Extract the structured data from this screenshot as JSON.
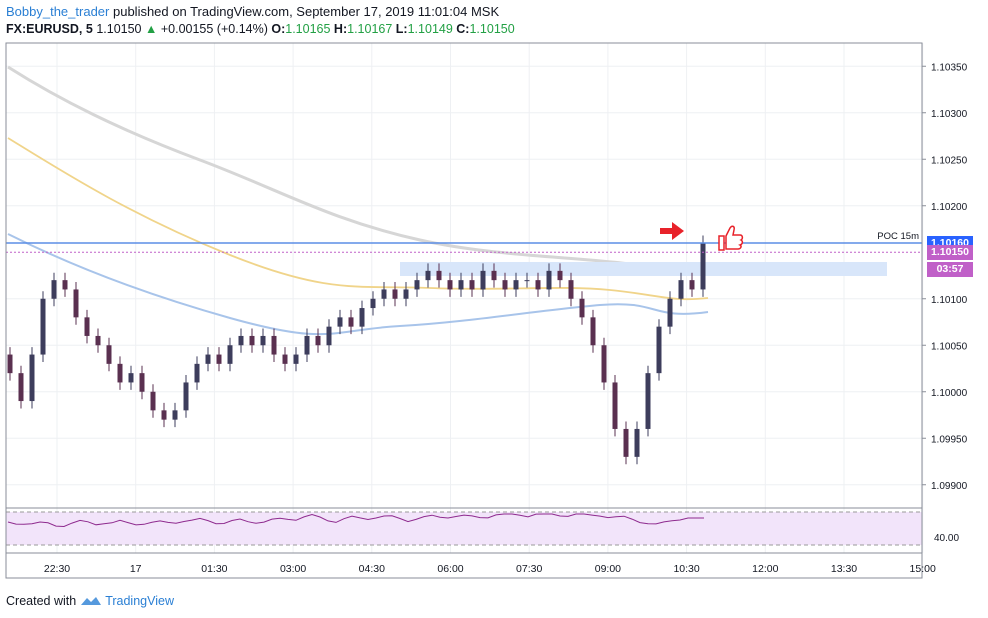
{
  "header": {
    "author": "Bobby_the_trader",
    "published": "published on TradingView.com, September 17, 2019 11:01:04 MSK",
    "symbol": "FX:EURUSD, 5",
    "last": "1.10150",
    "change_arrow": "▲",
    "change": "+0.00155 (+0.14%)",
    "o_label": "O:",
    "o": "1.10165",
    "h_label": "H:",
    "h": "1.10167",
    "l_label": "L:",
    "l": "1.10149",
    "c_label": "C:",
    "c": "1.10150"
  },
  "price_axis": {
    "ticks": [
      "1.10350",
      "1.10300",
      "1.10250",
      "1.10200",
      "1.10100",
      "1.10050",
      "1.10000",
      "1.09950",
      "1.09900"
    ],
    "tick_values": [
      1.1035,
      1.103,
      1.1025,
      1.102,
      1.101,
      1.1005,
      1.1,
      1.0995,
      1.099
    ],
    "range": [
      1.09875,
      1.10375
    ],
    "poc_label": "POC 15m",
    "poc_value": "1.10160",
    "price_tag": "1.10150",
    "countdown": "03:57",
    "colors": {
      "poc": "#2962ff",
      "price": "#c060c8",
      "countdown": "#c060c8"
    }
  },
  "rsi": {
    "label": "40.00",
    "upper": 70,
    "lower": 30
  },
  "time_axis": {
    "labels": [
      "22:30",
      "17",
      "01:30",
      "03:00",
      "04:30",
      "06:00",
      "07:30",
      "09:00",
      "10:30",
      "12:00",
      "13:30",
      "15:00"
    ]
  },
  "footer": {
    "created": "Created with",
    "brand": "TradingView"
  },
  "colors": {
    "bull": "#4b4b6a",
    "bear": "#6a3a5a",
    "ma_grey": "#d3d3d3",
    "ma_yellow": "#f0d48a",
    "ma_blue": "#a8c4ea",
    "zone": "#d8e6fa",
    "arrow": "#e8222a",
    "thumb": "#e8222a"
  }
}
